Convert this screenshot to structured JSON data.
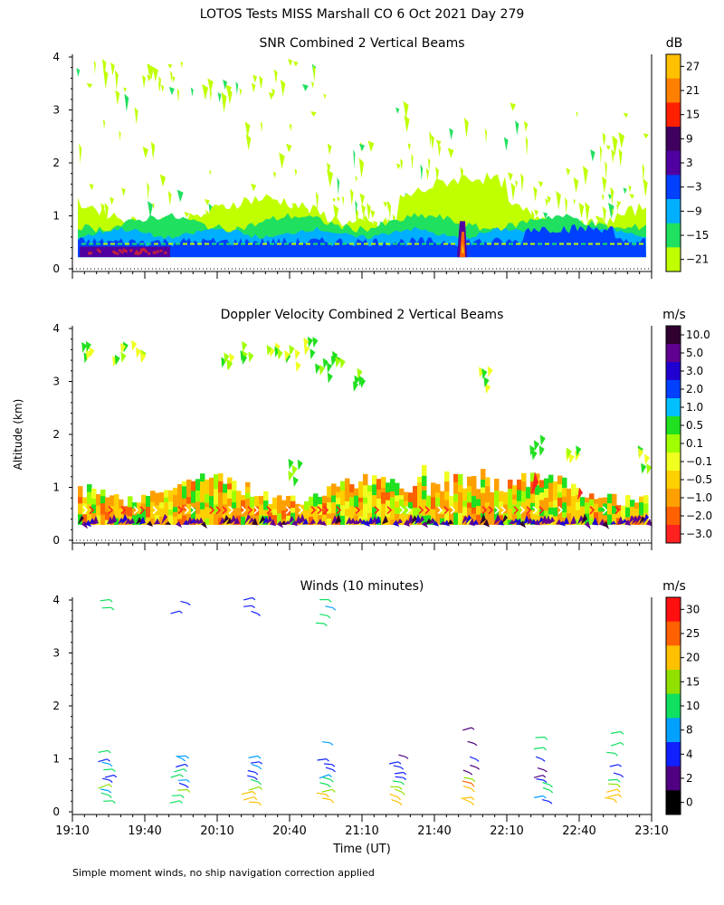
{
  "title": "LOTOS Tests MISS Marshall CO   6 Oct 2021 Day 279",
  "ylabel": "Altitude (km)",
  "xlabel": "Time (UT)",
  "footnote": "Simple moment winds, no ship navigation correction applied",
  "chart_data": [
    {
      "type": "heatmap",
      "title": "SNR Combined 2 Vertical Beams",
      "colorbar_unit": "dB",
      "colorbar_ticks": [
        "27",
        "21",
        "15",
        "9",
        "3",
        "−3",
        "−9",
        "−15",
        "−21"
      ],
      "colorbar_colors": [
        "#ffc000",
        "#ff8000",
        "#ff2000",
        "#400060",
        "#5000a0",
        "#0040ff",
        "#00b0ff",
        "#20e060",
        "#c0ff00"
      ],
      "y_ticks": [
        "0",
        "1",
        "2",
        "3",
        "4"
      ],
      "ylim": [
        0,
        4
      ],
      "xlim_minutes": [
        1150,
        1390
      ],
      "x_ticks_minutes": [
        1150,
        1180,
        1210,
        1240,
        1270,
        1300,
        1330,
        1360,
        1390
      ]
    },
    {
      "type": "heatmap",
      "title": "Doppler Velocity Combined 2 Vertical Beams",
      "colorbar_unit": "m/s",
      "colorbar_ticks": [
        "10.0",
        "5.0",
        "3.0",
        "2.0",
        "1.0",
        "0.5",
        "0.1",
        "−0.1",
        "−0.5",
        "−1.0",
        "−2.0",
        "−3.0"
      ],
      "colorbar_colors": [
        "#300030",
        "#600090",
        "#2000d0",
        "#0040ff",
        "#00c0ff",
        "#20e020",
        "#a0ff00",
        "#f0ff20",
        "#ffd000",
        "#ffa000",
        "#ff6000",
        "#ff2020"
      ],
      "y_ticks": [
        "0",
        "1",
        "2",
        "3",
        "4"
      ],
      "ylim": [
        0,
        4
      ]
    },
    {
      "type": "scatter",
      "title": "Winds (10 minutes)",
      "colorbar_unit": "m/s",
      "colorbar_ticks": [
        "30",
        "25",
        "20",
        "15",
        "10",
        "8",
        "4",
        "2",
        "0"
      ],
      "colorbar_colors": [
        "#ff1010",
        "#ff6000",
        "#ffc000",
        "#90e000",
        "#10e060",
        "#00a0ff",
        "#1020ff",
        "#500080",
        "#000000"
      ],
      "y_ticks": [
        "0",
        "1",
        "2",
        "3",
        "4"
      ],
      "ylim": [
        0,
        4
      ],
      "x_tick_labels": [
        "19:10",
        "19:40",
        "20:10",
        "20:40",
        "21:10",
        "21:40",
        "22:10",
        "22:40",
        "23:10"
      ],
      "profile_times": [
        "19:25",
        "19:55",
        "20:25",
        "20:55",
        "21:25",
        "21:55",
        "22:25",
        "22:55"
      ],
      "profiles": [
        {
          "speeds": [
            12,
            14,
            8,
            18,
            6,
            4,
            10,
            9,
            5,
            11
          ],
          "alts": [
            0.1,
            0.2,
            0.3,
            0.4,
            0.5,
            0.6,
            0.7,
            0.8,
            0.9,
            1.05
          ],
          "upper": [
            {
              "alt": 3.75,
              "spd": 12
            },
            {
              "alt": 3.9,
              "spd": 12
            }
          ]
        },
        {
          "speeds": [
            12,
            14,
            16,
            6,
            9,
            10,
            12,
            7,
            8,
            9
          ],
          "alts": [
            0.1,
            0.2,
            0.3,
            0.4,
            0.5,
            0.6,
            0.7,
            0.8,
            0.9,
            0.95
          ],
          "upper": [
            {
              "alt": 3.7,
              "spd": 4
            },
            {
              "alt": 3.85,
              "spd": 4
            }
          ]
        },
        {
          "speeds": [
            20,
            22,
            24,
            18,
            14,
            7,
            6,
            8,
            5,
            9
          ],
          "alts": [
            0.05,
            0.15,
            0.25,
            0.35,
            0.45,
            0.55,
            0.65,
            0.75,
            0.85,
            0.95
          ],
          "upper": [
            {
              "alt": 3.65,
              "spd": 4
            },
            {
              "alt": 3.8,
              "spd": 4
            },
            {
              "alt": 3.95,
              "spd": 4
            }
          ]
        },
        {
          "speeds": [
            20,
            22,
            18,
            14,
            12,
            8,
            6,
            5,
            7,
            9
          ],
          "alts": [
            0.1,
            0.2,
            0.3,
            0.4,
            0.5,
            0.6,
            0.7,
            0.8,
            0.9,
            1.2
          ],
          "upper": [
            {
              "alt": 3.45,
              "spd": 10
            },
            {
              "alt": 3.6,
              "spd": 10
            },
            {
              "alt": 3.75,
              "spd": 9
            },
            {
              "alt": 3.9,
              "spd": 12
            }
          ]
        },
        {
          "speeds": [
            20,
            22,
            18,
            16,
            12,
            6,
            5,
            4,
            5,
            3
          ],
          "alts": [
            0.05,
            0.15,
            0.25,
            0.35,
            0.45,
            0.55,
            0.65,
            0.75,
            0.85,
            0.95
          ],
          "upper": []
        },
        {
          "speeds": [
            22,
            20,
            24,
            26,
            16,
            3,
            3,
            4,
            3,
            3
          ],
          "alts": [
            0.05,
            0.15,
            0.3,
            0.4,
            0.5,
            0.65,
            0.75,
            0.9,
            1.2,
            1.5
          ],
          "upper": []
        },
        {
          "speeds": [
            5,
            8,
            10,
            12,
            6,
            3,
            3,
            4,
            14,
            13
          ],
          "alts": [
            0.1,
            0.2,
            0.3,
            0.4,
            0.5,
            0.6,
            0.7,
            0.9,
            1.1,
            1.3
          ],
          "upper": []
        },
        {
          "speeds": [
            24,
            22,
            20,
            16,
            12,
            6,
            4,
            10,
            12,
            14
          ],
          "alts": [
            0.1,
            0.2,
            0.3,
            0.4,
            0.5,
            0.6,
            0.8,
            1.0,
            1.2,
            1.4
          ],
          "upper": []
        }
      ]
    }
  ]
}
